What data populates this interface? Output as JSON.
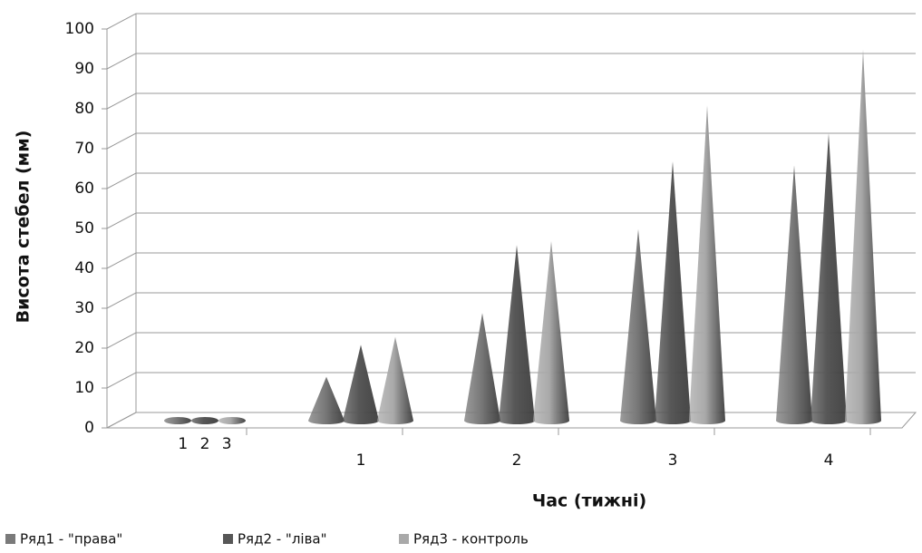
{
  "chart_data": {
    "type": "cone3d",
    "y_label": "Висота стебел (мм)",
    "x_label": "Час (тижні)",
    "categories": [
      "1 2 3",
      "1",
      "2",
      "3",
      "4"
    ],
    "series": [
      {
        "name": "Ряд1 - \"права\"",
        "color": "#7a7a7a",
        "values": [
          0,
          11,
          27,
          48,
          64
        ]
      },
      {
        "name": "Ряд2 - \"ліва\"",
        "color": "#575757",
        "values": [
          0,
          19,
          44,
          65,
          72
        ]
      },
      {
        "name": "Ряд3 - контроль",
        "color": "#a9a9a9",
        "values": [
          0,
          21,
          45,
          79,
          93
        ]
      }
    ],
    "ylim": [
      0,
      100
    ],
    "yticks": [
      0,
      10,
      20,
      30,
      40,
      50,
      60,
      70,
      80,
      90,
      100
    ],
    "grid": true
  }
}
